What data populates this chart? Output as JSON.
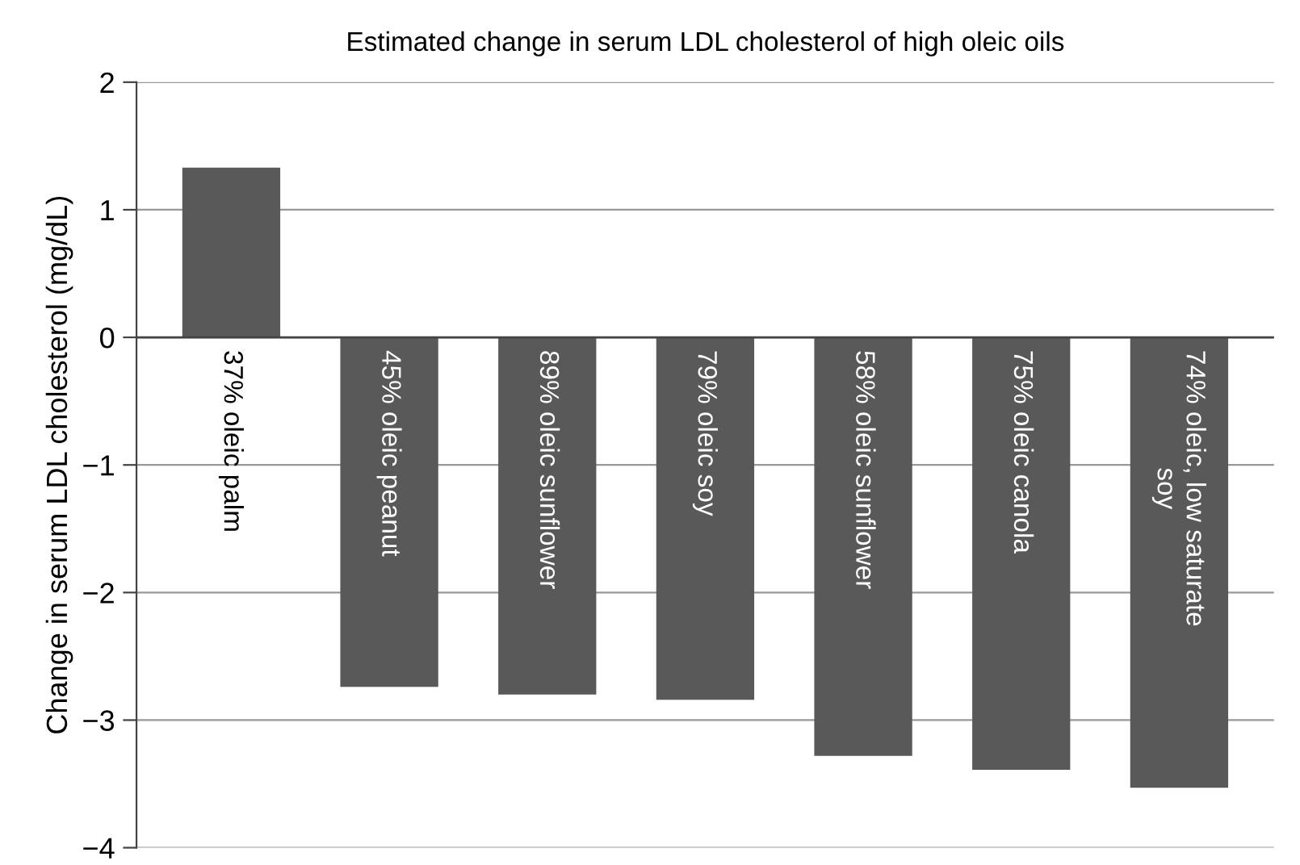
{
  "chart_data": {
    "type": "bar",
    "title": "Estimated change in serum LDL cholesterol of high oleic oils",
    "ylabel": "Change in serum LDL cholesterol (mg/dL)",
    "categories": [
      "37% oleic palm",
      "45% oleic peanut",
      "89% oleic sunflower",
      "79% oleic soy",
      "58% oleic sunflower",
      "75% oleic canola",
      "74% oleic, low saturate soy"
    ],
    "values": [
      1.33,
      -2.74,
      -2.8,
      -2.84,
      -3.28,
      -3.39,
      -3.53
    ],
    "color": "#595959",
    "ylim": [
      -4,
      2
    ],
    "yticks": [
      {
        "value": -4,
        "label": "−4"
      },
      {
        "value": -3,
        "label": "−3"
      },
      {
        "value": -2,
        "label": "−2"
      },
      {
        "value": -1,
        "label": "−1"
      },
      0,
      1,
      2
    ],
    "grid": "y",
    "legend": false
  }
}
